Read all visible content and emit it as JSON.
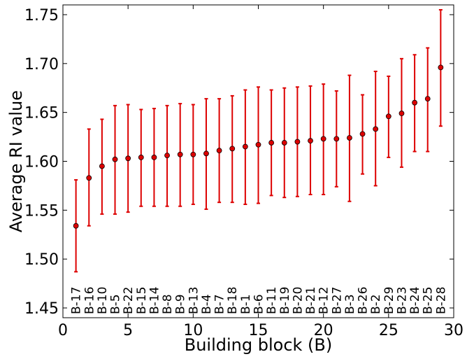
{
  "chart_data": {
    "type": "scatter",
    "title": "",
    "xlabel": "Building block (B)",
    "ylabel": "Average RI value",
    "xlim": [
      0,
      30
    ],
    "ylim": [
      1.44,
      1.76
    ],
    "xticks": [
      0,
      5,
      10,
      15,
      20,
      25,
      30
    ],
    "xtick_labels": [
      "0",
      "5",
      "10",
      "15",
      "20",
      "25",
      "30"
    ],
    "yticks": [
      1.45,
      1.5,
      1.55,
      1.6,
      1.65,
      1.7,
      1.75
    ],
    "ytick_labels": [
      "1.45",
      "1.50",
      "1.55",
      "1.60",
      "1.65",
      "1.70",
      "1.75"
    ],
    "grid": false,
    "color": "#dd0000",
    "points": [
      {
        "x": 1,
        "label": "B-17",
        "y": 1.534,
        "lo": 1.487,
        "hi": 1.581
      },
      {
        "x": 2,
        "label": "B-16",
        "y": 1.583,
        "lo": 1.534,
        "hi": 1.633
      },
      {
        "x": 3,
        "label": "B-10",
        "y": 1.595,
        "lo": 1.546,
        "hi": 1.643
      },
      {
        "x": 4,
        "label": "B-5",
        "y": 1.602,
        "lo": 1.546,
        "hi": 1.657
      },
      {
        "x": 5,
        "label": "B-22",
        "y": 1.603,
        "lo": 1.548,
        "hi": 1.658
      },
      {
        "x": 6,
        "label": "B-15",
        "y": 1.604,
        "lo": 1.554,
        "hi": 1.653
      },
      {
        "x": 7,
        "label": "B-14",
        "y": 1.604,
        "lo": 1.554,
        "hi": 1.654
      },
      {
        "x": 8,
        "label": "B-8",
        "y": 1.606,
        "lo": 1.554,
        "hi": 1.657
      },
      {
        "x": 9,
        "label": "B-9",
        "y": 1.607,
        "lo": 1.554,
        "hi": 1.659
      },
      {
        "x": 10,
        "label": "B-13",
        "y": 1.607,
        "lo": 1.556,
        "hi": 1.658
      },
      {
        "x": 11,
        "label": "B-4",
        "y": 1.608,
        "lo": 1.551,
        "hi": 1.664
      },
      {
        "x": 12,
        "label": "B-7",
        "y": 1.611,
        "lo": 1.558,
        "hi": 1.664
      },
      {
        "x": 13,
        "label": "B-18",
        "y": 1.613,
        "lo": 1.558,
        "hi": 1.667
      },
      {
        "x": 14,
        "label": "B-1",
        "y": 1.615,
        "lo": 1.556,
        "hi": 1.673
      },
      {
        "x": 15,
        "label": "B-6",
        "y": 1.617,
        "lo": 1.557,
        "hi": 1.676
      },
      {
        "x": 16,
        "label": "B-11",
        "y": 1.619,
        "lo": 1.565,
        "hi": 1.673
      },
      {
        "x": 17,
        "label": "B-19",
        "y": 1.619,
        "lo": 1.563,
        "hi": 1.675
      },
      {
        "x": 18,
        "label": "B-20",
        "y": 1.62,
        "lo": 1.564,
        "hi": 1.676
      },
      {
        "x": 19,
        "label": "B-21",
        "y": 1.621,
        "lo": 1.566,
        "hi": 1.677
      },
      {
        "x": 20,
        "label": "B-12",
        "y": 1.623,
        "lo": 1.566,
        "hi": 1.679
      },
      {
        "x": 21,
        "label": "B-27",
        "y": 1.623,
        "lo": 1.574,
        "hi": 1.672
      },
      {
        "x": 22,
        "label": "B-3",
        "y": 1.624,
        "lo": 1.559,
        "hi": 1.688
      },
      {
        "x": 23,
        "label": "B-26",
        "y": 1.628,
        "lo": 1.587,
        "hi": 1.668
      },
      {
        "x": 24,
        "label": "B-2",
        "y": 1.633,
        "lo": 1.575,
        "hi": 1.692
      },
      {
        "x": 25,
        "label": "B-29",
        "y": 1.646,
        "lo": 1.604,
        "hi": 1.687
      },
      {
        "x": 26,
        "label": "B-23",
        "y": 1.649,
        "lo": 1.594,
        "hi": 1.705
      },
      {
        "x": 27,
        "label": "B-24",
        "y": 1.66,
        "lo": 1.61,
        "hi": 1.709
      },
      {
        "x": 28,
        "label": "B-25",
        "y": 1.664,
        "lo": 1.61,
        "hi": 1.716
      },
      {
        "x": 29,
        "label": "B-28",
        "y": 1.696,
        "lo": 1.636,
        "hi": 1.755
      }
    ]
  }
}
